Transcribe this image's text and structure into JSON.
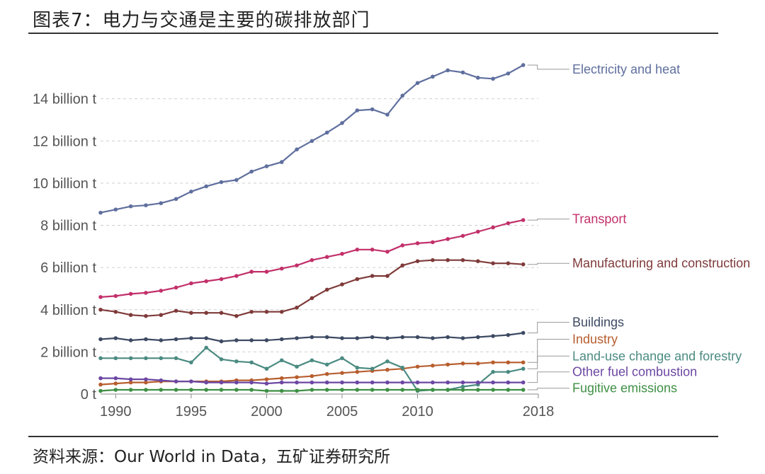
{
  "page": {
    "title": "图表7：电力与交通是主要的碳排放部门",
    "source": "资料来源：Our World in Data，五矿证券研究所"
  },
  "chart_data": {
    "type": "line",
    "title": "",
    "xlabel": "",
    "ylabel": "",
    "xlim": [
      1989,
      2018
    ],
    "ylim": [
      0,
      15.8
    ],
    "grid": true,
    "legend": "right-end-labels",
    "x_ticks": [
      {
        "value": 1990,
        "label": "1990"
      },
      {
        "value": 1995,
        "label": "1995"
      },
      {
        "value": 2000,
        "label": "2000"
      },
      {
        "value": 2005,
        "label": "2005"
      },
      {
        "value": 2010,
        "label": "2010"
      },
      {
        "value": 2018,
        "label": "2018"
      }
    ],
    "y_ticks": [
      {
        "value": 0,
        "label": "0 t"
      },
      {
        "value": 2,
        "label": "2 billion t"
      },
      {
        "value": 4,
        "label": "4 billion t"
      },
      {
        "value": 6,
        "label": "6 billion t"
      },
      {
        "value": 8,
        "label": "8 billion t"
      },
      {
        "value": 10,
        "label": "10 billion t"
      },
      {
        "value": 12,
        "label": "12 billion t"
      },
      {
        "value": 14,
        "label": "14 billion t"
      }
    ],
    "x": [
      1989,
      1990,
      1991,
      1992,
      1993,
      1994,
      1995,
      1996,
      1997,
      1998,
      1999,
      2000,
      2001,
      2002,
      2003,
      2004,
      2005,
      2006,
      2007,
      2008,
      2009,
      2010,
      2011,
      2012,
      2013,
      2014,
      2015,
      2016,
      2017,
      2018
    ],
    "series": [
      {
        "name": "Electricity and heat",
        "color": "#5f6f9e",
        "label_value": 15.4,
        "values": [
          8.6,
          8.75,
          8.9,
          8.95,
          9.05,
          9.25,
          9.6,
          9.85,
          10.05,
          10.15,
          10.55,
          10.8,
          11.0,
          11.6,
          12.0,
          12.4,
          12.85,
          13.45,
          13.5,
          13.25,
          14.15,
          14.75,
          15.05,
          15.35,
          15.25,
          15.0,
          14.95,
          15.2,
          15.6,
          null
        ]
      },
      {
        "name": "Transport",
        "color": "#c2306a",
        "label_value": 8.3,
        "values": [
          4.6,
          4.65,
          4.75,
          4.8,
          4.9,
          5.05,
          5.25,
          5.35,
          5.45,
          5.6,
          5.8,
          5.8,
          5.95,
          6.1,
          6.35,
          6.5,
          6.65,
          6.85,
          6.85,
          6.75,
          7.05,
          7.15,
          7.2,
          7.35,
          7.5,
          7.7,
          7.9,
          8.1,
          8.25,
          null
        ]
      },
      {
        "name": "Manufacturing and construction",
        "color": "#7f3a3a",
        "label_value": 6.2,
        "values": [
          4.0,
          3.9,
          3.75,
          3.7,
          3.75,
          3.95,
          3.85,
          3.85,
          3.85,
          3.7,
          3.9,
          3.9,
          3.9,
          4.1,
          4.55,
          4.95,
          5.2,
          5.45,
          5.6,
          5.6,
          6.1,
          6.3,
          6.35,
          6.35,
          6.35,
          6.3,
          6.2,
          6.2,
          6.15,
          null
        ]
      },
      {
        "name": "Buildings",
        "color": "#3d4a63",
        "label_value": 3.4,
        "values": [
          2.6,
          2.65,
          2.55,
          2.6,
          2.55,
          2.6,
          2.65,
          2.65,
          2.5,
          2.55,
          2.55,
          2.55,
          2.6,
          2.65,
          2.7,
          2.7,
          2.65,
          2.65,
          2.7,
          2.65,
          2.7,
          2.7,
          2.65,
          2.7,
          2.65,
          2.7,
          2.75,
          2.8,
          2.9,
          null
        ]
      },
      {
        "name": "Industry",
        "color": "#b75e2e",
        "label_value": 2.6,
        "values": [
          0.45,
          0.5,
          0.55,
          0.55,
          0.6,
          0.6,
          0.6,
          0.6,
          0.6,
          0.65,
          0.65,
          0.7,
          0.75,
          0.8,
          0.85,
          0.95,
          1.0,
          1.05,
          1.1,
          1.15,
          1.2,
          1.3,
          1.35,
          1.4,
          1.45,
          1.45,
          1.5,
          1.5,
          1.5,
          null
        ]
      },
      {
        "name": "Land-use change and forestry",
        "color": "#4b8b82",
        "label_value": 1.8,
        "values": [
          1.7,
          1.7,
          1.7,
          1.7,
          1.7,
          1.7,
          1.5,
          2.2,
          1.65,
          1.55,
          1.5,
          1.2,
          1.6,
          1.3,
          1.6,
          1.4,
          1.7,
          1.25,
          1.2,
          1.55,
          1.25,
          0.15,
          0.2,
          0.2,
          0.35,
          0.45,
          1.05,
          1.05,
          1.2,
          null
        ]
      },
      {
        "name": "Other fuel combustion",
        "color": "#6c47a3",
        "label_value": 1.05,
        "values": [
          0.75,
          0.75,
          0.7,
          0.7,
          0.65,
          0.6,
          0.6,
          0.55,
          0.55,
          0.55,
          0.55,
          0.5,
          0.55,
          0.55,
          0.55,
          0.55,
          0.55,
          0.55,
          0.55,
          0.55,
          0.55,
          0.55,
          0.55,
          0.55,
          0.55,
          0.55,
          0.55,
          0.55,
          0.55,
          null
        ]
      },
      {
        "name": "Fugitive emissions",
        "color": "#3f8f45",
        "label_value": 0.28,
        "values": [
          0.15,
          0.2,
          0.2,
          0.2,
          0.2,
          0.2,
          0.2,
          0.2,
          0.2,
          0.2,
          0.2,
          0.15,
          0.15,
          0.15,
          0.2,
          0.2,
          0.2,
          0.2,
          0.2,
          0.2,
          0.2,
          0.2,
          0.2,
          0.2,
          0.2,
          0.2,
          0.2,
          0.2,
          0.2,
          null
        ]
      }
    ]
  }
}
